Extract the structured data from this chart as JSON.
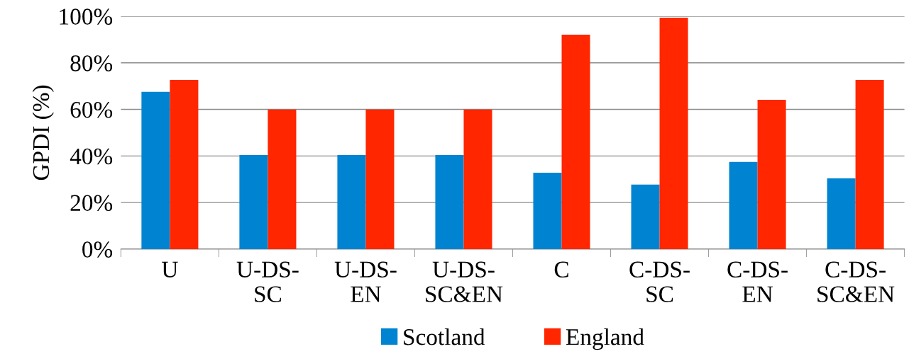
{
  "chart_data": {
    "type": "bar",
    "ylabel": "GPDI (%)",
    "categories": [
      "U",
      "U-DS-\nSC",
      "U-DS-\nEN",
      "U-DS-\nSC&EN",
      "C",
      "C-DS-\nSC",
      "C-DS-\nEN",
      "C-DS-\nSC&EN"
    ],
    "series": [
      {
        "name": "Scotland",
        "color": "#0084d1",
        "values": [
          67.5,
          40.4,
          40.4,
          40.4,
          32.8,
          27.7,
          37.4,
          30.4
        ]
      },
      {
        "name": "England",
        "color": "#ff2600",
        "values": [
          72.6,
          59.9,
          59.9,
          59.9,
          92.1,
          99.4,
          64.1,
          72.6
        ]
      }
    ],
    "ylim": [
      0,
      100
    ],
    "yticks": [
      {
        "value": 0,
        "label": "0%"
      },
      {
        "value": 20,
        "label": "20%"
      },
      {
        "value": 40,
        "label": "40%"
      },
      {
        "value": 60,
        "label": "60%"
      },
      {
        "value": 80,
        "label": "80%"
      },
      {
        "value": 100,
        "label": "100%"
      }
    ],
    "grid": "y",
    "legend": "bottom"
  }
}
